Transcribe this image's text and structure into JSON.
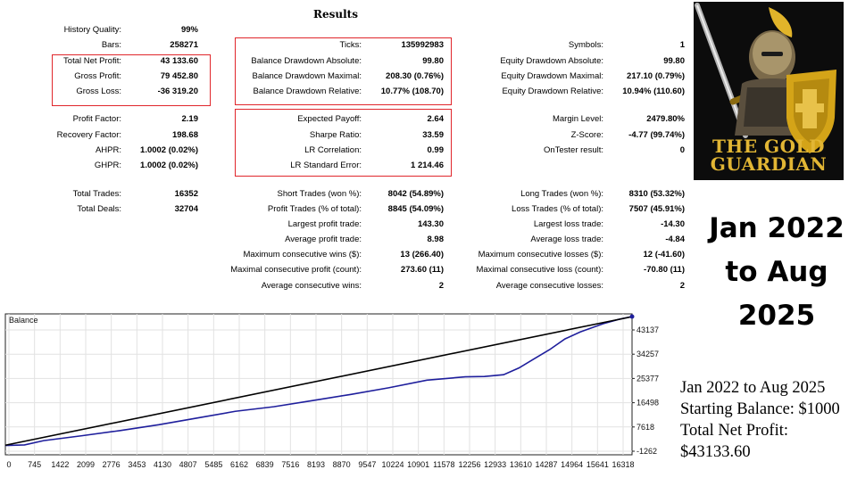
{
  "report": {
    "title": "Results",
    "col1": [
      {
        "label": "History Quality:",
        "value": "99%"
      },
      {
        "label": "Bars:",
        "value": "258271"
      },
      {
        "label": "Total Net Profit:",
        "value": "43 133.60"
      },
      {
        "label": "Gross Profit:",
        "value": "79 452.80"
      },
      {
        "label": "Gross Loss:",
        "value": "-36 319.20"
      },
      {
        "label": "Profit Factor:",
        "value": "2.19"
      },
      {
        "label": "Recovery Factor:",
        "value": "198.68"
      },
      {
        "label": "AHPR:",
        "value": "1.0002 (0.02%)"
      },
      {
        "label": "GHPR:",
        "value": "1.0002 (0.02%)"
      },
      {
        "label": "Total Trades:",
        "value": "16352"
      },
      {
        "label": "Total Deals:",
        "value": "32704"
      }
    ],
    "col2": [
      {
        "label": "Ticks:",
        "value": "135992983"
      },
      {
        "label": "Balance Drawdown Absolute:",
        "value": "99.80"
      },
      {
        "label": "Balance Drawdown Maximal:",
        "value": "208.30 (0.76%)"
      },
      {
        "label": "Balance Drawdown Relative:",
        "value": "10.77% (108.70)"
      },
      {
        "label": "Expected Payoff:",
        "value": "2.64"
      },
      {
        "label": "Sharpe Ratio:",
        "value": "33.59"
      },
      {
        "label": "LR Correlation:",
        "value": "0.99"
      },
      {
        "label": "LR Standard Error:",
        "value": "1 214.46"
      },
      {
        "label": "Short Trades (won %):",
        "value": "8042 (54.89%)"
      },
      {
        "label": "Profit Trades (% of total):",
        "value": "8845 (54.09%)"
      },
      {
        "label": "Largest profit trade:",
        "value": "143.30"
      },
      {
        "label": "Average profit trade:",
        "value": "8.98"
      },
      {
        "label": "Maximum consecutive wins ($):",
        "value": "13 (266.40)"
      },
      {
        "label": "Maximal consecutive profit (count):",
        "value": "273.60 (11)"
      },
      {
        "label": "Average consecutive wins:",
        "value": "2"
      }
    ],
    "col3": [
      {
        "label": "Symbols:",
        "value": "1"
      },
      {
        "label": "Equity Drawdown Absolute:",
        "value": "99.80"
      },
      {
        "label": "Equity Drawdown Maximal:",
        "value": "217.10 (0.79%)"
      },
      {
        "label": "Equity Drawdown Relative:",
        "value": "10.94% (110.60)"
      },
      {
        "label": "Margin Level:",
        "value": "2479.80%"
      },
      {
        "label": "Z-Score:",
        "value": "-4.77 (99.74%)"
      },
      {
        "label": "OnTester result:",
        "value": "0"
      },
      {
        "label": "Long Trades (won %):",
        "value": "8310 (53.32%)"
      },
      {
        "label": "Loss Trades (% of total):",
        "value": "7507 (45.91%)"
      },
      {
        "label": "Largest loss trade:",
        "value": "-14.30"
      },
      {
        "label": "Average loss trade:",
        "value": "-4.84"
      },
      {
        "label": "Maximum consecutive losses ($):",
        "value": "12 (-41.60)"
      },
      {
        "label": "Maximal consecutive loss (count):",
        "value": "-70.80 (11)"
      },
      {
        "label": "Average consecutive losses:",
        "value": "2"
      }
    ]
  },
  "logo": {
    "line1": "THE GOLD",
    "line2": "GUARDIAN",
    "gold_color": "#d4a418"
  },
  "headline": {
    "line1": "Jan 2022",
    "line2": "to Aug",
    "line3": "2025"
  },
  "summary": {
    "line1": "Jan 2022 to Aug 2025",
    "line2": "Starting Balance: $1000",
    "line3": "Total Net Profit:",
    "line4": "$43133.60"
  },
  "chart_data": {
    "type": "line",
    "title": "Balance",
    "x_ticks": [
      "0",
      "745",
      "1422",
      "2099",
      "2776",
      "3453",
      "4130",
      "4807",
      "5485",
      "6162",
      "6839",
      "7516",
      "8193",
      "8870",
      "9547",
      "10224",
      "10901",
      "11578",
      "12256",
      "12933",
      "13610",
      "14287",
      "14964",
      "15641",
      "16318"
    ],
    "y_ticks": [
      "43137",
      "34257",
      "25377",
      "16498",
      "7618",
      "-1262"
    ],
    "ylim": [
      -1262,
      43137
    ],
    "xlim": [
      0,
      16352
    ],
    "series": [
      {
        "name": "",
        "color": "#1e1e9c",
        "x": [
          0,
          500,
          1000,
          2000,
          3000,
          4000,
          5000,
          6000,
          7000,
          8000,
          9000,
          10000,
          11000,
          12000,
          12500,
          13000,
          13400,
          13800,
          14200,
          14600,
          15000,
          15600,
          16000,
          16352
        ],
        "y": [
          900,
          1100,
          2500,
          4100,
          5800,
          7700,
          9900,
          12100,
          13600,
          15600,
          17600,
          19800,
          22300,
          23400,
          23500,
          24100,
          26300,
          29300,
          32300,
          35800,
          38100,
          40800,
          42200,
          43137
        ]
      },
      {
        "name": "",
        "color": "#000000",
        "x": [
          0,
          16352
        ],
        "y": [
          1000,
          43100
        ]
      }
    ]
  },
  "colors": {
    "frame_red": "#e0262b",
    "balance_line": "#1e1e9c",
    "trend_line": "#000000"
  }
}
